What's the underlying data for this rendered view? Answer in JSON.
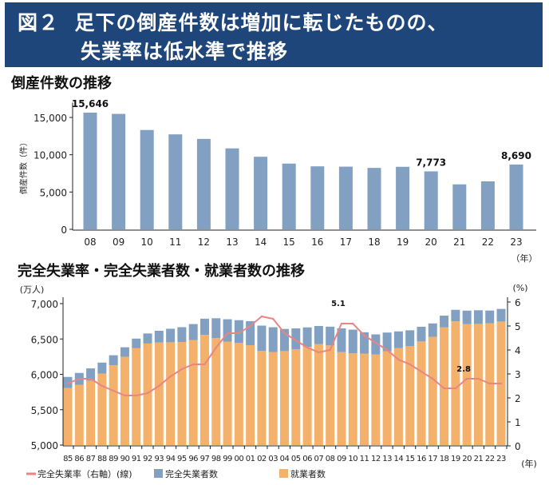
{
  "header": {
    "figure_label": "図２",
    "title_line1": "足下の倒産件数は増加に転じたものの、",
    "title_line2": "失業率は低水準で推移",
    "background_color": "#1f467a"
  },
  "chart_data": [
    {
      "type": "bar",
      "title": "倒産件数の推移",
      "ylabel": "倒産件数（件）",
      "xlabel": "（年）",
      "categories": [
        "08",
        "09",
        "10",
        "11",
        "12",
        "13",
        "14",
        "15",
        "16",
        "17",
        "18",
        "19",
        "20",
        "21",
        "22",
        "23"
      ],
      "values": [
        15646,
        15480,
        13321,
        12734,
        12124,
        10855,
        9731,
        8812,
        8446,
        8405,
        8235,
        8383,
        7773,
        6030,
        6428,
        8690
      ],
      "data_labels": {
        "08": "15,646",
        "20": "7,773",
        "23": "8,690"
      },
      "ylim": [
        0,
        17000
      ],
      "yticks": [
        "0",
        "5,000",
        "10,000",
        "15,000"
      ],
      "ytick_values": [
        0,
        5000,
        10000,
        15000
      ],
      "color": "#82a1c2",
      "grid": false
    },
    {
      "type": "bar+line",
      "title": "完全失業率・完全失業者数・就業者数の推移",
      "left_unit": "(万人)",
      "right_unit": "(%)",
      "xlabel": "(年)",
      "categories": [
        "85",
        "86",
        "87",
        "88",
        "89",
        "90",
        "91",
        "92",
        "93",
        "94",
        "95",
        "96",
        "97",
        "98",
        "99",
        "00",
        "01",
        "02",
        "03",
        "04",
        "05",
        "06",
        "07",
        "08",
        "09",
        "10",
        "11",
        "12",
        "13",
        "14",
        "15",
        "16",
        "17",
        "18",
        "19",
        "20",
        "21",
        "22",
        "23"
      ],
      "series": [
        {
          "name": "就業者数",
          "kind": "stacked-bar",
          "axis": "left",
          "color": "#f4b16c",
          "values": [
            5807,
            5853,
            5911,
            6011,
            6128,
            6249,
            6369,
            6436,
            6450,
            6453,
            6457,
            6486,
            6557,
            6514,
            6462,
            6446,
            6412,
            6330,
            6316,
            6329,
            6356,
            6389,
            6427,
            6409,
            6314,
            6298,
            6293,
            6280,
            6326,
            6371,
            6401,
            6465,
            6530,
            6664,
            6750,
            6710,
            6713,
            6723,
            6747
          ]
        },
        {
          "name": "完全失業者数",
          "kind": "stacked-bar",
          "axis": "left",
          "color": "#82a1c2",
          "values": [
            156,
            167,
            173,
            155,
            142,
            134,
            136,
            142,
            166,
            192,
            210,
            225,
            230,
            279,
            317,
            320,
            340,
            359,
            350,
            313,
            294,
            275,
            257,
            265,
            336,
            334,
            302,
            285,
            265,
            236,
            222,
            208,
            190,
            166,
            162,
            191,
            193,
            179,
            178
          ]
        },
        {
          "name": "完全失業率（右軸）(線)",
          "kind": "line",
          "axis": "right",
          "color": "#e88585",
          "values": [
            2.6,
            2.8,
            2.8,
            2.5,
            2.3,
            2.1,
            2.1,
            2.2,
            2.5,
            2.9,
            3.2,
            3.4,
            3.4,
            4.1,
            4.7,
            4.7,
            5.0,
            5.4,
            5.3,
            4.7,
            4.4,
            4.1,
            3.9,
            4.0,
            5.1,
            5.1,
            4.6,
            4.3,
            4.0,
            3.6,
            3.4,
            3.1,
            2.8,
            2.4,
            2.4,
            2.8,
            2.8,
            2.6,
            2.6
          ]
        }
      ],
      "data_labels": {
        "09": "5.1",
        "20": "2.8"
      },
      "ylim_left": [
        5000,
        7100
      ],
      "yticks_left": [
        "5,000",
        "5,500",
        "6,000",
        "6,500",
        "7,000"
      ],
      "ytick_values_left": [
        5000,
        5500,
        6000,
        6500,
        7000
      ],
      "ylim_right": [
        0,
        6.1
      ],
      "yticks_right": [
        "0",
        "1",
        "2",
        "3",
        "4",
        "5",
        "6"
      ],
      "legend_position": "bottom",
      "grid": false
    }
  ]
}
